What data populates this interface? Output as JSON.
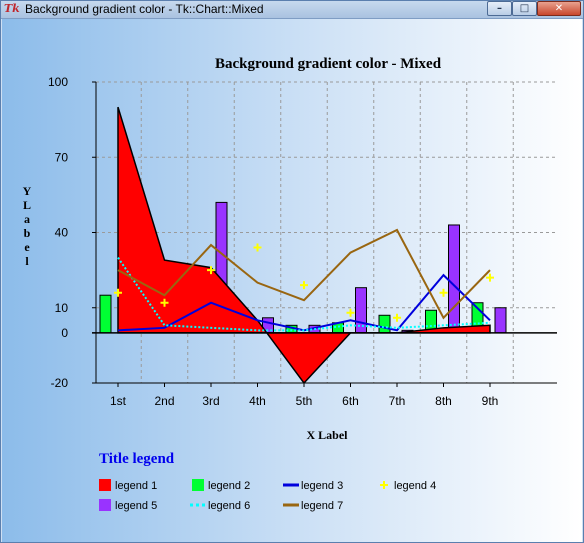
{
  "window": {
    "title": "Background gradient color - Tk::Chart::Mixed",
    "app_icon": "Tk",
    "controls": {
      "minimize": "–",
      "maximize": "□",
      "close": "✕"
    }
  },
  "chart_data": {
    "type": "mixed",
    "title": "Background gradient color - Mixed",
    "xlabel": "X Label",
    "ylabel": "Y Label",
    "ylim": [
      -20,
      100
    ],
    "yticks": [
      -20,
      0,
      10,
      40,
      70,
      100
    ],
    "grid": true,
    "categories": [
      "1st",
      "2nd",
      "3rd",
      "4th",
      "5th",
      "6th",
      "7th",
      "8th",
      "9th"
    ],
    "legend_title": "Title legend",
    "legend_position": "bottom",
    "series": [
      {
        "name": "legend 1",
        "kind": "area",
        "color": "#ff0000",
        "values": [
          90,
          29,
          26,
          5,
          -20,
          0,
          0,
          2,
          3
        ]
      },
      {
        "name": "legend 2",
        "kind": "bar",
        "color": "#00ff33",
        "values": [
          15,
          10,
          5,
          2,
          3,
          4,
          7,
          9,
          12
        ]
      },
      {
        "name": "legend 3",
        "kind": "line",
        "color": "#0000dd",
        "values": [
          1,
          2,
          12,
          5,
          1,
          5,
          1,
          23,
          5
        ]
      },
      {
        "name": "legend 4",
        "kind": "point",
        "color": "#ffff00",
        "values": [
          16,
          12,
          25,
          34,
          19,
          8,
          6,
          16,
          22
        ]
      },
      {
        "name": "legend 5",
        "kind": "bar",
        "color": "#9933ff",
        "values": [
          15,
          2,
          52,
          6,
          3,
          18,
          1,
          43,
          10
        ]
      },
      {
        "name": "legend 6",
        "kind": "dashline",
        "color": "#00ffff",
        "values": [
          30,
          3,
          2,
          1,
          1,
          3,
          2,
          3,
          4
        ]
      },
      {
        "name": "legend 7",
        "kind": "line",
        "color": "#996611",
        "values": [
          25,
          15,
          35,
          20,
          13,
          32,
          41,
          6,
          25
        ]
      }
    ]
  }
}
